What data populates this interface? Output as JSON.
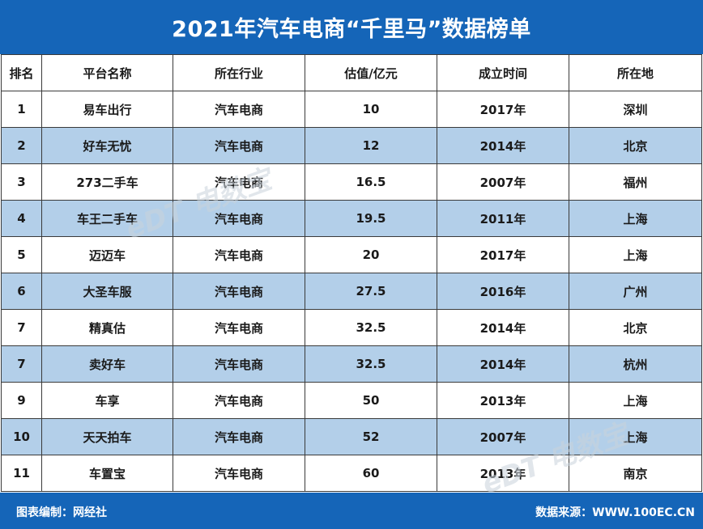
{
  "title": "2021年汽车电商“千里马”数据榜单",
  "columns": [
    "排名",
    "平台名称",
    "所在行业",
    "估值/亿元",
    "成立时间",
    "所在地"
  ],
  "rows": [
    [
      "1",
      "易车出行",
      "汽车电商",
      "10",
      "2017年",
      "深圳"
    ],
    [
      "2",
      "好车无忧",
      "汽车电商",
      "12",
      "2014年",
      "北京"
    ],
    [
      "3",
      "273二手车",
      "汽车电商",
      "16.5",
      "2007年",
      "福州"
    ],
    [
      "4",
      "车王二手车",
      "汽车电商",
      "19.5",
      "2011年",
      "上海"
    ],
    [
      "5",
      "迈迈车",
      "汽车电商",
      "20",
      "2017年",
      "上海"
    ],
    [
      "6",
      "大圣车服",
      "汽车电商",
      "27.5",
      "2016年",
      "广州"
    ],
    [
      "7",
      "精真估",
      "汽车电商",
      "32.5",
      "2014年",
      "北京"
    ],
    [
      "7",
      "卖好车",
      "汽车电商",
      "32.5",
      "2014年",
      "杭州"
    ],
    [
      "9",
      "车享",
      "汽车电商",
      "50",
      "2013年",
      "上海"
    ],
    [
      "10",
      "天天拍车",
      "汽车电商",
      "52",
      "2007年",
      "上海"
    ],
    [
      "11",
      "车置宝",
      "汽车电商",
      "60",
      "2013年",
      "南京"
    ]
  ],
  "footer": {
    "left": "图表编制：网经社",
    "right": "数据来源：WWW.100EC.CN"
  },
  "watermark": "eDT 电数宝",
  "colors": {
    "header": "#1565b8",
    "row_alt": "#b3cfe9"
  }
}
